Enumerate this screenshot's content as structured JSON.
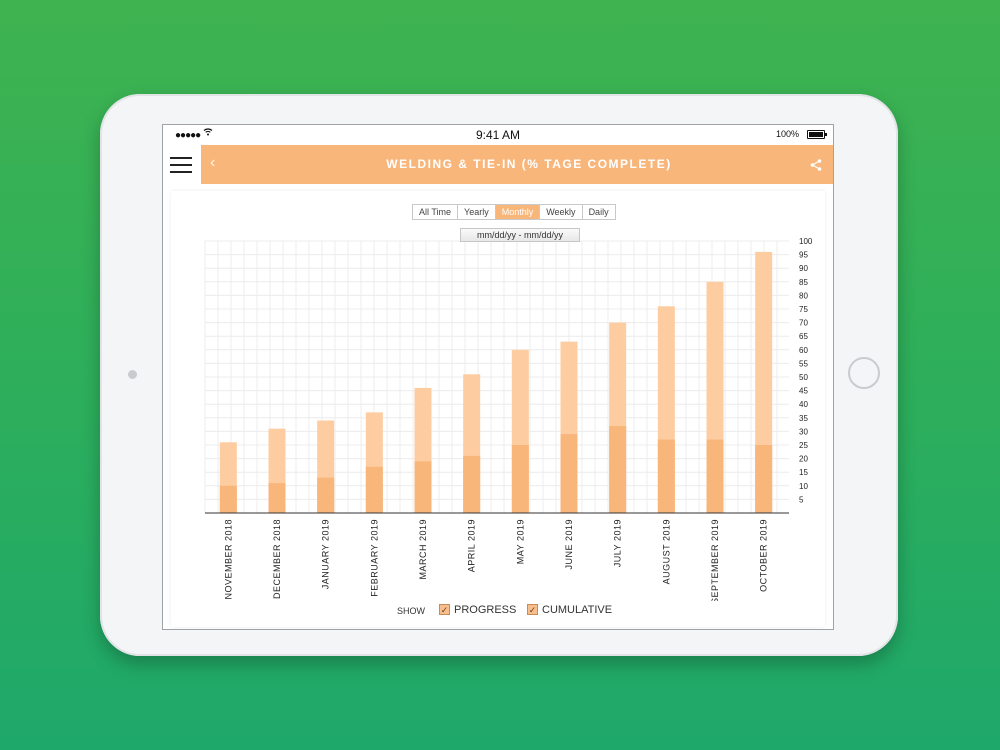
{
  "status": {
    "time": "9:41 AM",
    "battery": "100%",
    "signal": "●●●●●",
    "wifi_icon": "wifi-icon"
  },
  "appbar": {
    "title": "WELDING & TIE-IN (% TAGE COMPLETE)",
    "back_icon": "‹",
    "color": "#f9b67b"
  },
  "filters": {
    "options": [
      "All Time",
      "Yearly",
      "Monthly",
      "Weekly",
      "Daily"
    ],
    "selected": "Monthly"
  },
  "date_range": "mm/dd/yy - mm/dd/yy",
  "legend": {
    "show_label": "SHOW",
    "progress_label": "PROGRESS",
    "cumulative_label": "CUMULATIVE",
    "check": "✓"
  },
  "chart_data": {
    "type": "bar",
    "stacked": false,
    "categories": [
      "NOVEMBER 2018",
      "DECEMBER 2018",
      "JANUARY 2019",
      "FEBRUARY 2019",
      "MARCH 2019",
      "APRIL 2019",
      "MAY 2019",
      "JUNE 2019",
      "JULY 2019",
      "AUGUST 2019",
      "SEPTEMBER 2019",
      "OCTOBER 2019"
    ],
    "series": [
      {
        "name": "CUMULATIVE",
        "color": "#fdcda1",
        "values": [
          26,
          31,
          34,
          37,
          46,
          51,
          60,
          63,
          70,
          76,
          85,
          96
        ]
      },
      {
        "name": "PROGRESS",
        "color": "#f9b67b",
        "values": [
          10,
          11,
          13,
          17,
          19,
          21,
          25,
          29,
          32,
          27,
          27,
          25
        ]
      }
    ],
    "ylim": [
      0,
      100
    ],
    "yticks": [
      5,
      10,
      15,
      20,
      25,
      30,
      35,
      40,
      45,
      50,
      55,
      60,
      65,
      70,
      75,
      80,
      85,
      90,
      95,
      100
    ],
    "grid": true,
    "y_axis_side": "right"
  }
}
